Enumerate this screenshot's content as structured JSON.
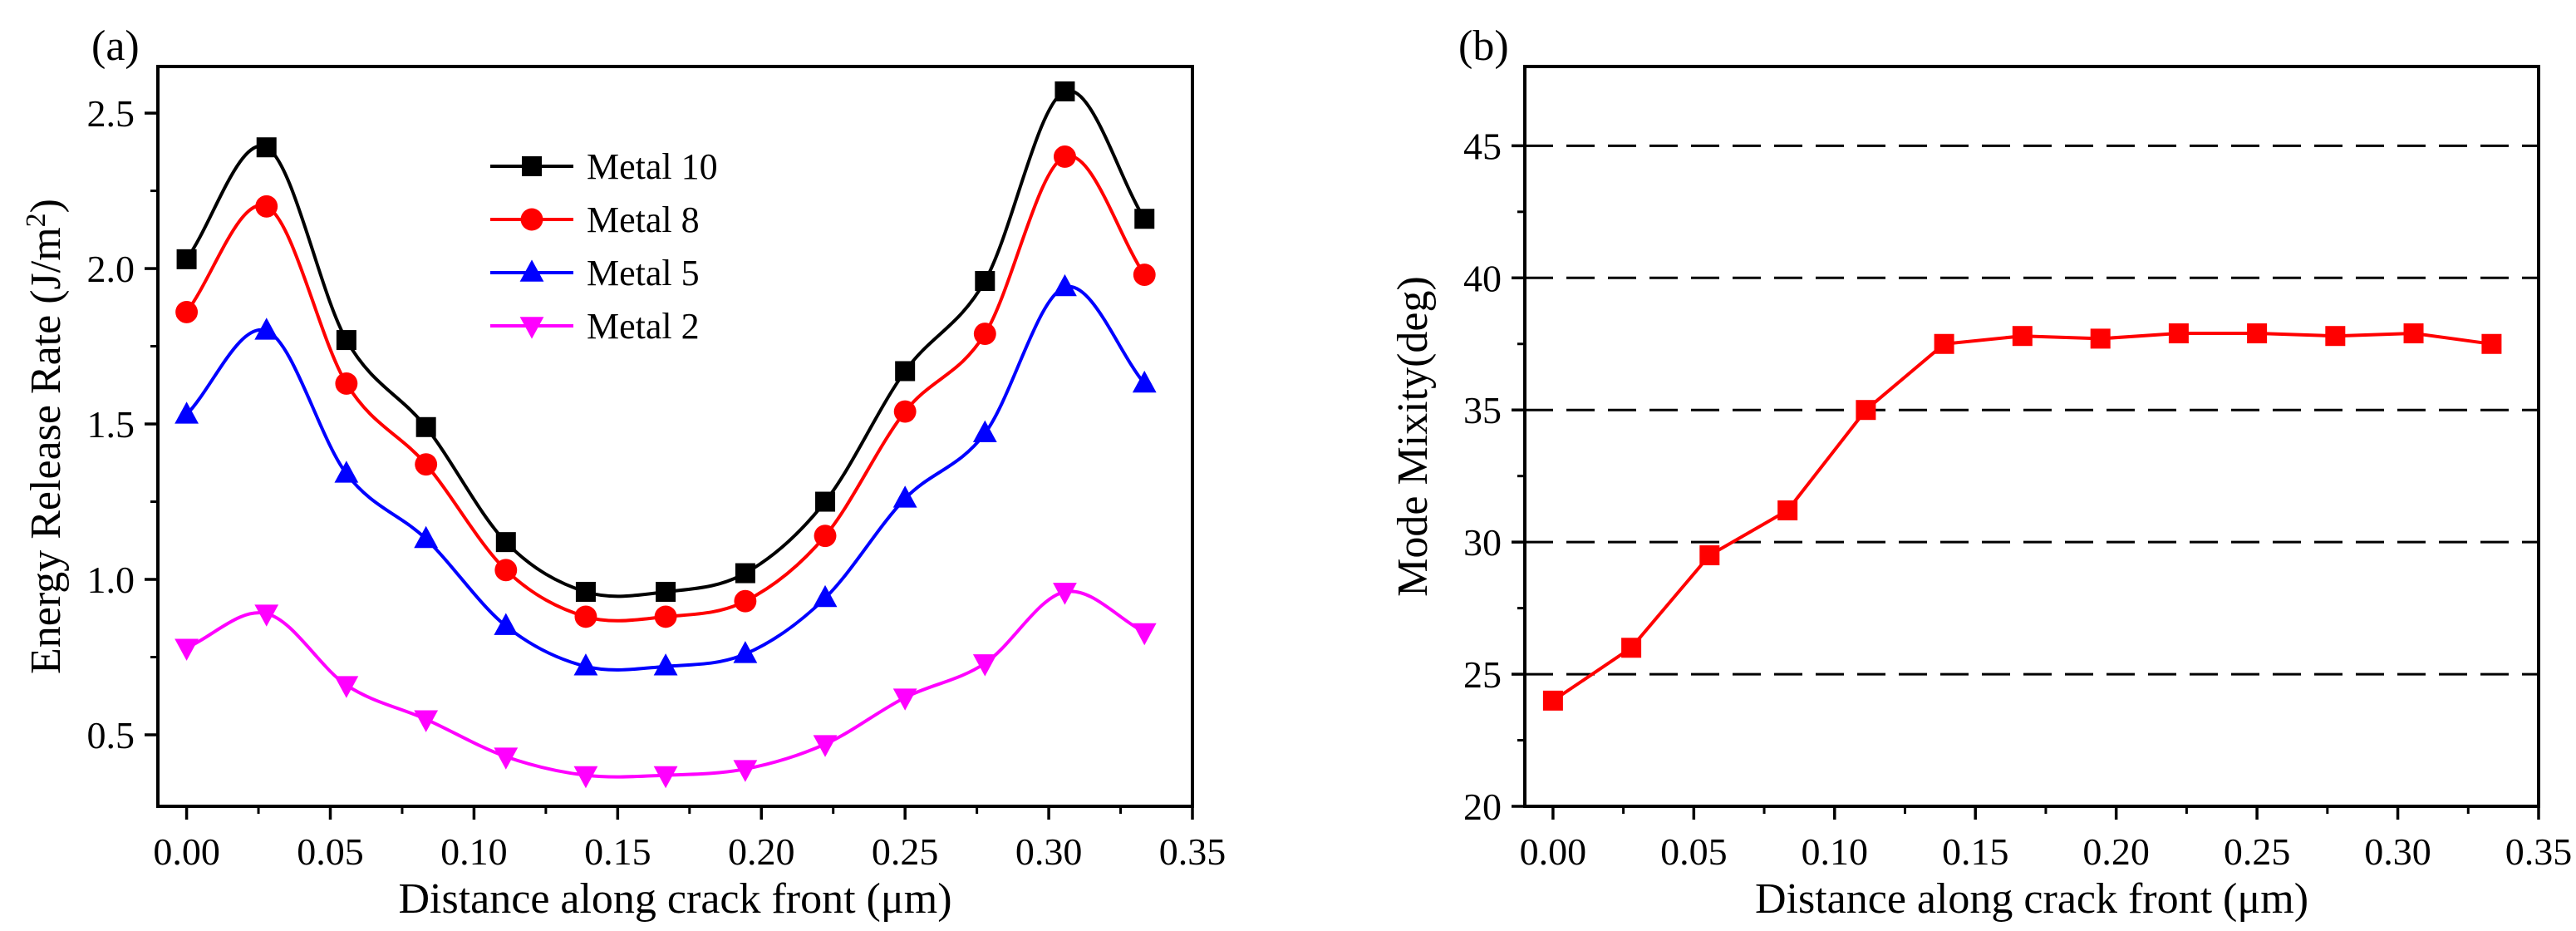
{
  "chart_data": [
    {
      "type": "line",
      "panel_label": "(a)",
      "xlabel": "Distance along crack front (μm)",
      "ylabel_main": "Energy Release Rate (J/m",
      "ylabel_sup": "2",
      "ylabel_tail": ")",
      "xlim": [
        -0.01,
        0.35
      ],
      "ylim": [
        0.27,
        2.65
      ],
      "xticks": [
        0.0,
        0.05,
        0.1,
        0.15,
        0.2,
        0.25,
        0.3,
        0.35
      ],
      "xtick_labels": [
        "0.00",
        "0.05",
        "0.10",
        "0.15",
        "0.20",
        "0.25",
        "0.30",
        "0.35"
      ],
      "yticks": [
        0.5,
        1.0,
        1.5,
        2.0,
        2.5
      ],
      "ytick_labels": [
        "0.5",
        "1.0",
        "1.5",
        "2.0",
        "2.5"
      ],
      "grid": false,
      "legend_position": "top-center",
      "x": [
        0.0,
        0.0278,
        0.0556,
        0.0833,
        0.1111,
        0.1389,
        0.1667,
        0.1944,
        0.2222,
        0.25,
        0.2778,
        0.3056,
        0.3333
      ],
      "series": [
        {
          "name": "Metal 10",
          "color": "#000000",
          "marker": "square",
          "values": [
            2.03,
            2.39,
            1.77,
            1.49,
            1.12,
            0.96,
            0.96,
            1.02,
            1.25,
            1.67,
            1.96,
            2.57,
            2.16
          ]
        },
        {
          "name": "Metal 8",
          "color": "#ff0000",
          "marker": "circle",
          "values": [
            1.86,
            2.2,
            1.63,
            1.37,
            1.03,
            0.88,
            0.88,
            0.93,
            1.14,
            1.54,
            1.79,
            2.36,
            1.98
          ]
        },
        {
          "name": "Metal 5",
          "color": "#0000ff",
          "marker": "triangle-up",
          "values": [
            1.53,
            1.8,
            1.34,
            1.13,
            0.85,
            0.72,
            0.72,
            0.76,
            0.94,
            1.26,
            1.47,
            1.94,
            1.63
          ]
        },
        {
          "name": "Metal 2",
          "color": "#ff00ff",
          "marker": "triangle-down",
          "values": [
            0.78,
            0.89,
            0.66,
            0.55,
            0.43,
            0.37,
            0.37,
            0.39,
            0.47,
            0.62,
            0.73,
            0.96,
            0.83
          ]
        }
      ]
    },
    {
      "type": "line",
      "panel_label": "(b)",
      "xlabel": "Distance along crack front (μm)",
      "ylabel": "Mode Mixity(deg)",
      "xlim": [
        -0.01,
        0.35
      ],
      "ylim": [
        20,
        48
      ],
      "xticks": [
        0.0,
        0.05,
        0.1,
        0.15,
        0.2,
        0.25,
        0.3,
        0.35
      ],
      "xtick_labels": [
        "0.00",
        "0.05",
        "0.10",
        "0.15",
        "0.20",
        "0.25",
        "0.30",
        "0.35"
      ],
      "yticks": [
        20,
        25,
        30,
        35,
        40,
        45
      ],
      "ytick_labels": [
        "20",
        "25",
        "30",
        "35",
        "40",
        "45"
      ],
      "grid": true,
      "grid_style": "dashed horizontal",
      "x": [
        0.0,
        0.0278,
        0.0556,
        0.0833,
        0.1111,
        0.1389,
        0.1667,
        0.1944,
        0.2222,
        0.25,
        0.2778,
        0.3056,
        0.3333
      ],
      "series": [
        {
          "color": "#ff0000",
          "marker": "square",
          "values": [
            24.0,
            26.0,
            29.5,
            31.2,
            35.0,
            37.5,
            37.8,
            37.7,
            37.9,
            37.9,
            37.8,
            37.9,
            37.5
          ]
        }
      ]
    }
  ]
}
